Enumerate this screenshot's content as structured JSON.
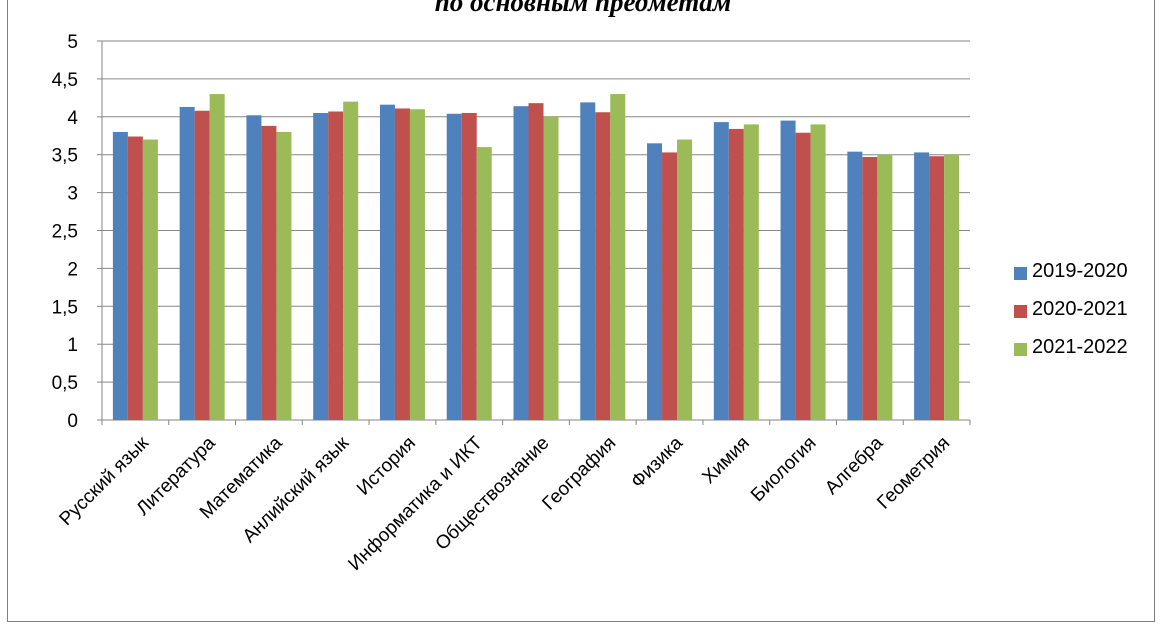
{
  "chart_data": {
    "type": "bar",
    "title": "по основным предметам",
    "xlabel": "",
    "ylabel": "",
    "ylim": [
      0,
      5
    ],
    "ytick_step": 0.5,
    "yticks": [
      "0",
      "0,5",
      "1",
      "1,5",
      "2",
      "2,5",
      "3",
      "3,5",
      "4",
      "4,5",
      "5"
    ],
    "grid": true,
    "legend_position": "right",
    "categories": [
      "Русский язык",
      "Литература",
      "Математика",
      "Анлийский язык",
      "История",
      "Информатика и ИКТ",
      "Обществознание",
      "География",
      "Физика",
      "Химия",
      "Биология",
      "Алгебра",
      "Геометрия"
    ],
    "series": [
      {
        "name": "2019-2020",
        "color": "#4f81bd",
        "values": [
          3.8,
          4.13,
          4.02,
          4.05,
          4.16,
          4.04,
          4.14,
          4.19,
          3.65,
          3.93,
          3.95,
          3.54,
          3.53
        ]
      },
      {
        "name": "2020-2021",
        "color": "#c0504d",
        "values": [
          3.74,
          4.08,
          3.88,
          4.07,
          4.11,
          4.05,
          4.18,
          4.06,
          3.53,
          3.84,
          3.79,
          3.47,
          3.48
        ]
      },
      {
        "name": "2021-2022",
        "color": "#9bbb59",
        "values": [
          3.7,
          4.3,
          3.8,
          4.2,
          4.1,
          3.6,
          4.0,
          4.3,
          3.7,
          3.9,
          3.9,
          3.5,
          3.5
        ]
      }
    ]
  }
}
